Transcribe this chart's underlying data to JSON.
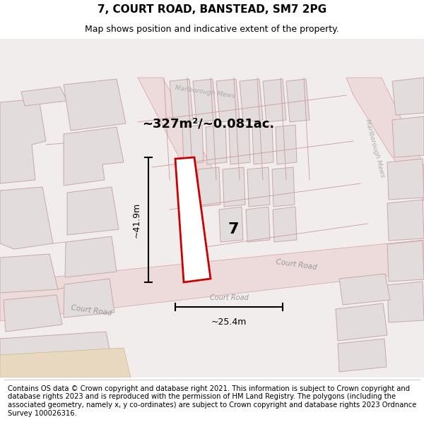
{
  "title": "7, COURT ROAD, BANSTEAD, SM7 2PG",
  "subtitle": "Map shows position and indicative extent of the property.",
  "footer": "Contains OS data © Crown copyright and database right 2021. This information is subject to Crown copyright and database rights 2023 and is reproduced with the permission of HM Land Registry. The polygons (including the associated geometry, namely x, y co-ordinates) are subject to Crown copyright and database rights 2023 Ordnance Survey 100026316.",
  "area_label": "~327m²/~0.081ac.",
  "property_number": "7",
  "dim_width": "~25.4m",
  "dim_height": "~41.9m",
  "map_bg": "#f2eded",
  "building_fill": "#e2dcdc",
  "building_edge": "#c9a8a8",
  "road_fill": "#eddada",
  "road_edge": "#d4a0a0",
  "highlight_fill": "#ffffff",
  "highlight_stroke": "#cc0000",
  "title_fontsize": 11,
  "subtitle_fontsize": 9,
  "footer_fontsize": 7.2,
  "label_color": "#aaaaaa",
  "road_label_color": "#999999"
}
